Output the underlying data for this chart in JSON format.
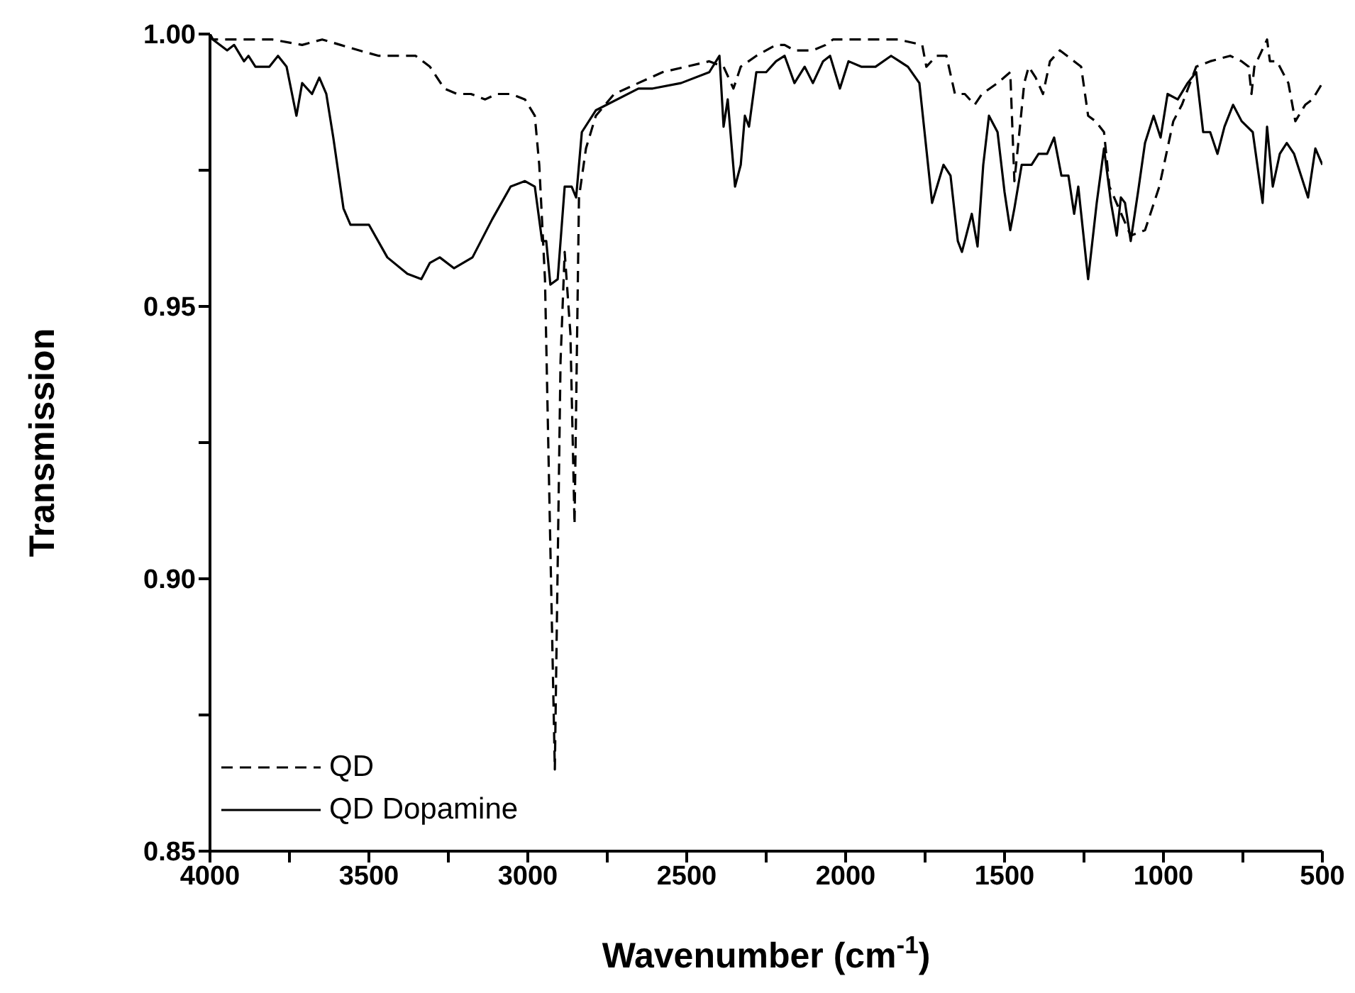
{
  "chart_data": {
    "type": "line",
    "xlabel": "Wavenumber (cm$^{-1}$)",
    "ylabel": "Transmission",
    "xlim": [
      4000,
      500
    ],
    "ylim": [
      0.85,
      1.0
    ],
    "xticks": [
      4000,
      {
        "value": 3750,
        "label": null
      },
      3500,
      {
        "value": 3250,
        "label": null
      },
      3000,
      {
        "value": 2750,
        "label": null
      },
      2500,
      {
        "value": 2250,
        "label": null
      },
      2000,
      {
        "value": 1750,
        "label": null
      },
      1500,
      {
        "value": 1250,
        "label": null
      },
      1000,
      {
        "value": 750,
        "label": null
      },
      500
    ],
    "yticks": [
      {
        "value": 0.85,
        "label": "0.85"
      },
      {
        "value": 0.875,
        "label": null
      },
      {
        "value": 0.9,
        "label": "0.90"
      },
      {
        "value": 0.925,
        "label": null
      },
      {
        "value": 0.95,
        "label": "0.95"
      },
      {
        "value": 0.975,
        "label": null
      },
      {
        "value": 1.0,
        "label": "1.00"
      }
    ],
    "legend": "bottom left",
    "grid": false,
    "marker": "none",
    "series": [
      {
        "name": "QD",
        "color": "#000000",
        "line_style": "dashed",
        "x": [
          4000,
          3991,
          3888,
          3804,
          3710,
          3647,
          3589,
          3531,
          3469,
          3353,
          3308,
          3263,
          3223,
          3179,
          3134,
          3098,
          3054,
          3009,
          2978,
          2964,
          2946,
          2915,
          2897,
          2884,
          2866,
          2853,
          2839,
          2817,
          2786,
          2728,
          2576,
          2429,
          2384,
          2353,
          2330,
          2281,
          2219,
          2192,
          2161,
          2103,
          2063,
          2040,
          1982,
          1893,
          1835,
          1759,
          1746,
          1714,
          1683,
          1656,
          1625,
          1594,
          1571,
          1522,
          1482,
          1469,
          1455,
          1438,
          1424,
          1402,
          1379,
          1357,
          1326,
          1281,
          1259,
          1237,
          1214,
          1187,
          1170,
          1103,
          1058,
          1013,
          969,
          942,
          897,
          853,
          790,
          754,
          732,
          723,
          714,
          674,
          665,
          643,
          607,
          585,
          554,
          531,
          500
        ],
        "values": [
          1.0,
          0.999,
          0.999,
          0.999,
          0.998,
          0.999,
          0.998,
          0.997,
          0.996,
          0.996,
          0.994,
          0.99,
          0.989,
          0.989,
          0.988,
          0.989,
          0.989,
          0.988,
          0.985,
          0.976,
          0.955,
          0.865,
          0.94,
          0.96,
          0.945,
          0.91,
          0.97,
          0.979,
          0.985,
          0.989,
          0.993,
          0.995,
          0.994,
          0.99,
          0.994,
          0.996,
          0.998,
          0.998,
          0.997,
          0.997,
          0.998,
          0.999,
          0.999,
          0.999,
          0.999,
          0.998,
          0.994,
          0.996,
          0.996,
          0.989,
          0.989,
          0.987,
          0.989,
          0.991,
          0.993,
          0.973,
          0.981,
          0.991,
          0.994,
          0.992,
          0.989,
          0.995,
          0.997,
          0.995,
          0.994,
          0.985,
          0.984,
          0.982,
          0.972,
          0.963,
          0.964,
          0.972,
          0.984,
          0.987,
          0.994,
          0.995,
          0.996,
          0.995,
          0.994,
          0.989,
          0.994,
          0.999,
          0.995,
          0.995,
          0.991,
          0.984,
          0.987,
          0.988,
          0.991
        ]
      },
      {
        "name": "QD Dopamine",
        "color": "#000000",
        "line_style": "solid",
        "x": [
          4000,
          3991,
          3946,
          3924,
          3893,
          3879,
          3857,
          3813,
          3786,
          3759,
          3728,
          3710,
          3679,
          3656,
          3634,
          3612,
          3580,
          3558,
          3545,
          3500,
          3442,
          3379,
          3335,
          3308,
          3277,
          3232,
          3174,
          3112,
          3054,
          3009,
          2978,
          2955,
          2942,
          2929,
          2906,
          2884,
          2862,
          2848,
          2830,
          2786,
          2652,
          2607,
          2518,
          2429,
          2397,
          2384,
          2371,
          2348,
          2330,
          2317,
          2304,
          2281,
          2250,
          2219,
          2192,
          2161,
          2129,
          2103,
          2071,
          2049,
          2018,
          1991,
          1951,
          1906,
          1857,
          1804,
          1768,
          1728,
          1692,
          1670,
          1647,
          1634,
          1603,
          1585,
          1567,
          1549,
          1522,
          1500,
          1482,
          1469,
          1446,
          1415,
          1393,
          1366,
          1344,
          1321,
          1299,
          1281,
          1268,
          1237,
          1210,
          1187,
          1165,
          1147,
          1134,
          1121,
          1103,
          1080,
          1058,
          1031,
          1009,
          987,
          955,
          924,
          897,
          875,
          853,
          830,
          808,
          781,
          754,
          719,
          688,
          674,
          656,
          634,
          612,
          589,
          567,
          545,
          522,
          500
        ],
        "values": [
          1.0,
          0.999,
          0.997,
          0.998,
          0.995,
          0.996,
          0.994,
          0.994,
          0.996,
          0.994,
          0.985,
          0.991,
          0.989,
          0.992,
          0.989,
          0.981,
          0.968,
          0.965,
          0.965,
          0.965,
          0.959,
          0.956,
          0.955,
          0.958,
          0.959,
          0.957,
          0.959,
          0.966,
          0.972,
          0.973,
          0.972,
          0.962,
          0.962,
          0.954,
          0.955,
          0.972,
          0.972,
          0.97,
          0.982,
          0.986,
          0.99,
          0.99,
          0.991,
          0.993,
          0.996,
          0.983,
          0.988,
          0.972,
          0.976,
          0.985,
          0.983,
          0.993,
          0.993,
          0.995,
          0.996,
          0.991,
          0.994,
          0.991,
          0.995,
          0.996,
          0.99,
          0.995,
          0.994,
          0.994,
          0.996,
          0.994,
          0.991,
          0.969,
          0.976,
          0.974,
          0.962,
          0.96,
          0.967,
          0.961,
          0.976,
          0.985,
          0.982,
          0.971,
          0.964,
          0.968,
          0.976,
          0.976,
          0.978,
          0.978,
          0.981,
          0.974,
          0.974,
          0.967,
          0.972,
          0.955,
          0.969,
          0.979,
          0.969,
          0.963,
          0.97,
          0.969,
          0.962,
          0.971,
          0.98,
          0.985,
          0.981,
          0.989,
          0.988,
          0.991,
          0.993,
          0.982,
          0.982,
          0.978,
          0.983,
          0.987,
          0.984,
          0.982,
          0.969,
          0.983,
          0.972,
          0.978,
          0.98,
          0.978,
          0.974,
          0.97,
          0.979,
          0.976
        ]
      }
    ]
  }
}
